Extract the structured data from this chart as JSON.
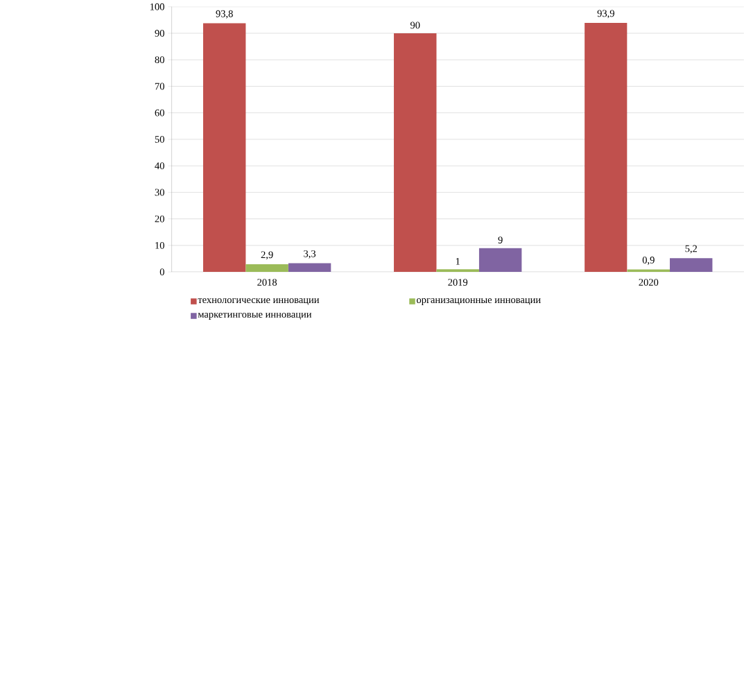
{
  "chart_data": {
    "type": "bar",
    "categories": [
      "2018",
      "2019",
      "2020"
    ],
    "series": [
      {
        "name": "технологические инновации",
        "color": "#c0504d",
        "values": [
          93.8,
          90,
          93.9
        ],
        "value_labels": [
          "93,8",
          "90",
          "93,9"
        ]
      },
      {
        "name": "организационные  инновации",
        "color": "#9bbb59",
        "values": [
          2.9,
          1,
          0.9
        ],
        "value_labels": [
          "2,9",
          "1",
          "0,9"
        ]
      },
      {
        "name": "маркетинговые инновации",
        "color": "#8064a2",
        "values": [
          3.3,
          9,
          5.2
        ],
        "value_labels": [
          "3,3",
          "9",
          "5,2"
        ]
      }
    ],
    "ylim": [
      0,
      100
    ],
    "yticks": [
      0,
      10,
      20,
      30,
      40,
      50,
      60,
      70,
      80,
      90,
      100
    ],
    "grid": "y",
    "legend": "bottom"
  }
}
